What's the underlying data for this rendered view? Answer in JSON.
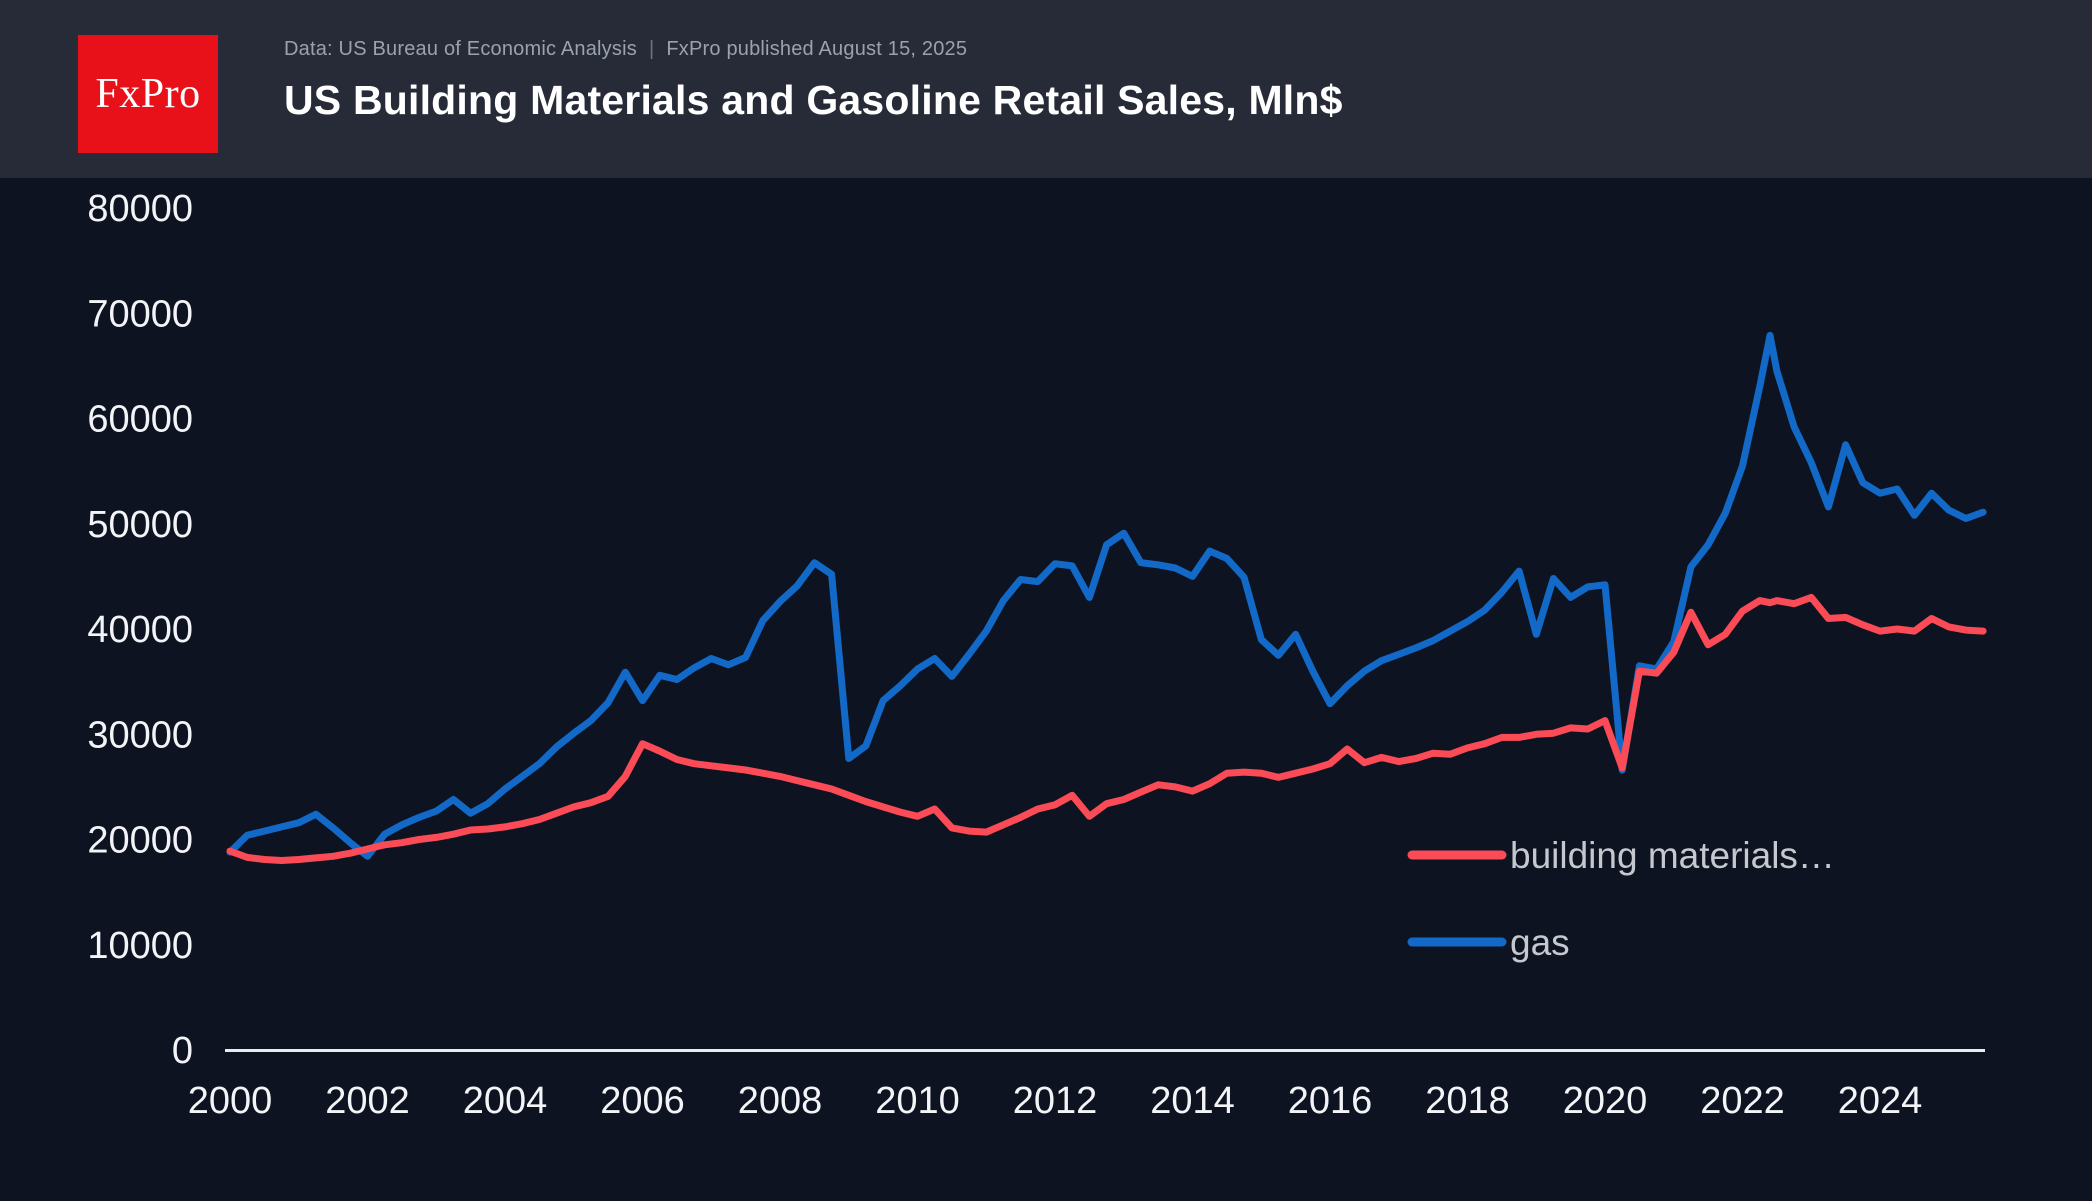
{
  "header": {
    "logo_text": "FxPro",
    "logo_bg_color": "#e8111a",
    "source_line": "Data: US Bureau of Economic Analysis",
    "divider": "|",
    "published_line": "FxPro published August 15, 2025",
    "title": "US Building Materials and Gasoline Retail Sales, Mln$"
  },
  "chart_data": {
    "type": "line",
    "title": "US Building Materials and Gasoline Retail Sales, Mln$",
    "xlabel": "",
    "ylabel": "",
    "ylim": [
      0,
      80000
    ],
    "xlim": [
      1999.9,
      2025.6
    ],
    "grid": false,
    "legend_position": "bottom-right",
    "background": "#0d1320",
    "header_background": "#272b38",
    "axis_color": "#e9ebef",
    "tick_label_color": "#f2f4f7",
    "legend_text_color": "#c5c8ce",
    "y_ticks": [
      0,
      10000,
      20000,
      30000,
      40000,
      50000,
      60000,
      70000,
      80000
    ],
    "x_ticks": [
      2000,
      2002,
      2004,
      2006,
      2008,
      2010,
      2012,
      2014,
      2016,
      2018,
      2020,
      2022,
      2024
    ],
    "x": [
      2000,
      2000.25,
      2000.5,
      2000.75,
      2001,
      2001.25,
      2001.5,
      2001.75,
      2002,
      2002.25,
      2002.5,
      2002.75,
      2003,
      2003.25,
      2003.5,
      2003.75,
      2004,
      2004.25,
      2004.5,
      2004.75,
      2005,
      2005.25,
      2005.5,
      2005.75,
      2006,
      2006.25,
      2006.5,
      2006.75,
      2007,
      2007.25,
      2007.5,
      2007.75,
      2008,
      2008.25,
      2008.5,
      2008.75,
      2009,
      2009.25,
      2009.5,
      2009.75,
      2010,
      2010.25,
      2010.5,
      2010.75,
      2011,
      2011.25,
      2011.5,
      2011.75,
      2012,
      2012.25,
      2012.5,
      2012.75,
      2013,
      2013.25,
      2013.5,
      2013.75,
      2014,
      2014.25,
      2014.5,
      2014.75,
      2015,
      2015.25,
      2015.5,
      2015.75,
      2016,
      2016.25,
      2016.5,
      2016.75,
      2017,
      2017.25,
      2017.5,
      2017.75,
      2018,
      2018.25,
      2018.5,
      2018.75,
      2019,
      2019.25,
      2019.5,
      2019.75,
      2020,
      2020.25,
      2020.5,
      2020.75,
      2021,
      2021.25,
      2021.5,
      2021.75,
      2022,
      2022.25,
      2022.4,
      2022.5,
      2022.75,
      2023,
      2023.25,
      2023.5,
      2023.75,
      2024,
      2024.25,
      2024.5,
      2024.75,
      2025,
      2025.25,
      2025.5
    ],
    "series": [
      {
        "name": "building materials…",
        "color": "#fa4b57",
        "values": [
          18900,
          18300,
          18100,
          18000,
          18100,
          18250,
          18400,
          18700,
          19100,
          19500,
          19700,
          20000,
          20200,
          20500,
          20900,
          21000,
          21200,
          21500,
          21900,
          22500,
          23100,
          23500,
          24100,
          26000,
          29100,
          28400,
          27600,
          27200,
          27000,
          26800,
          26600,
          26300,
          26000,
          25600,
          25200,
          24800,
          24200,
          23600,
          23100,
          22600,
          22200,
          22900,
          21100,
          20800,
          20700,
          21400,
          22100,
          22900,
          23300,
          24200,
          22200,
          23400,
          23800,
          24500,
          25200,
          25000,
          24600,
          25300,
          26300,
          26400,
          26300,
          25900,
          26300,
          26700,
          27200,
          28600,
          27300,
          27800,
          27400,
          27700,
          28200,
          28100,
          28700,
          29100,
          29700,
          29700,
          30000,
          30100,
          30600,
          30500,
          31300,
          26800,
          36000,
          35800,
          37800,
          41600,
          38500,
          39500,
          41700,
          42700,
          42500,
          42700,
          42400,
          43000,
          41000,
          41100,
          40400,
          39800,
          40000,
          39800,
          41000,
          40200,
          39900,
          39800
        ]
      },
      {
        "name": "gas",
        "color": "#1269c7",
        "values": [
          18800,
          20400,
          20800,
          21200,
          21600,
          22400,
          21100,
          19700,
          18400,
          20500,
          21400,
          22100,
          22700,
          23800,
          22500,
          23400,
          24800,
          26000,
          27200,
          28800,
          30100,
          31300,
          33000,
          35900,
          33200,
          35600,
          35200,
          36300,
          37200,
          36600,
          37300,
          40800,
          42600,
          44100,
          46300,
          45200,
          27700,
          28900,
          33200,
          34600,
          36200,
          37200,
          35500,
          37600,
          39800,
          42700,
          44700,
          44500,
          46200,
          46000,
          43000,
          48000,
          49100,
          46300,
          46100,
          45800,
          45000,
          47400,
          46700,
          44900,
          39000,
          37500,
          39500,
          36000,
          32900,
          34600,
          36000,
          37000,
          37600,
          38200,
          38900,
          39800,
          40700,
          41800,
          43500,
          45500,
          39500,
          44800,
          43000,
          44000,
          44200,
          26600,
          36500,
          36200,
          38800,
          45900,
          48000,
          51000,
          55500,
          63000,
          67900,
          64500,
          59200,
          55800,
          51600,
          57500,
          53900,
          52900,
          53300,
          50800,
          52900,
          51300,
          50500,
          51100
        ]
      }
    ]
  }
}
